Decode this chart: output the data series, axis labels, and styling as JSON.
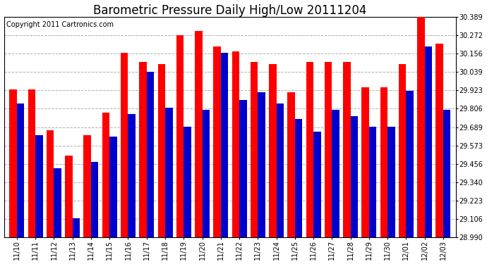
{
  "title": "Barometric Pressure Daily High/Low 20111204",
  "copyright": "Copyright 2011 Cartronics.com",
  "dates": [
    "11/10",
    "11/11",
    "11/12",
    "11/13",
    "11/14",
    "11/15",
    "11/16",
    "11/17",
    "11/18",
    "11/19",
    "11/20",
    "11/21",
    "11/22",
    "11/23",
    "11/24",
    "11/25",
    "11/26",
    "11/27",
    "11/28",
    "11/29",
    "11/30",
    "12/01",
    "12/02",
    "12/03"
  ],
  "highs": [
    29.93,
    29.93,
    29.67,
    29.51,
    29.64,
    29.78,
    30.16,
    30.1,
    30.09,
    30.27,
    30.3,
    30.2,
    30.17,
    30.1,
    30.09,
    29.91,
    30.1,
    30.1,
    30.1,
    29.94,
    29.94,
    30.09,
    30.39,
    30.22
  ],
  "lows": [
    29.84,
    29.64,
    29.43,
    29.11,
    29.47,
    29.63,
    29.77,
    30.04,
    29.81,
    29.69,
    29.8,
    30.16,
    29.86,
    29.91,
    29.84,
    29.74,
    29.66,
    29.8,
    29.76,
    29.69,
    29.69,
    29.92,
    30.2,
    29.8
  ],
  "high_color": "#ff0000",
  "low_color": "#0000cc",
  "bg_color": "#ffffff",
  "grid_color": "#b0b0b0",
  "ylim_min": 28.99,
  "ylim_max": 30.389,
  "yticks": [
    28.99,
    29.106,
    29.223,
    29.34,
    29.456,
    29.573,
    29.689,
    29.806,
    29.923,
    30.039,
    30.156,
    30.272,
    30.389
  ],
  "bar_width": 0.4,
  "title_fontsize": 12,
  "tick_fontsize": 7,
  "copyright_fontsize": 7
}
